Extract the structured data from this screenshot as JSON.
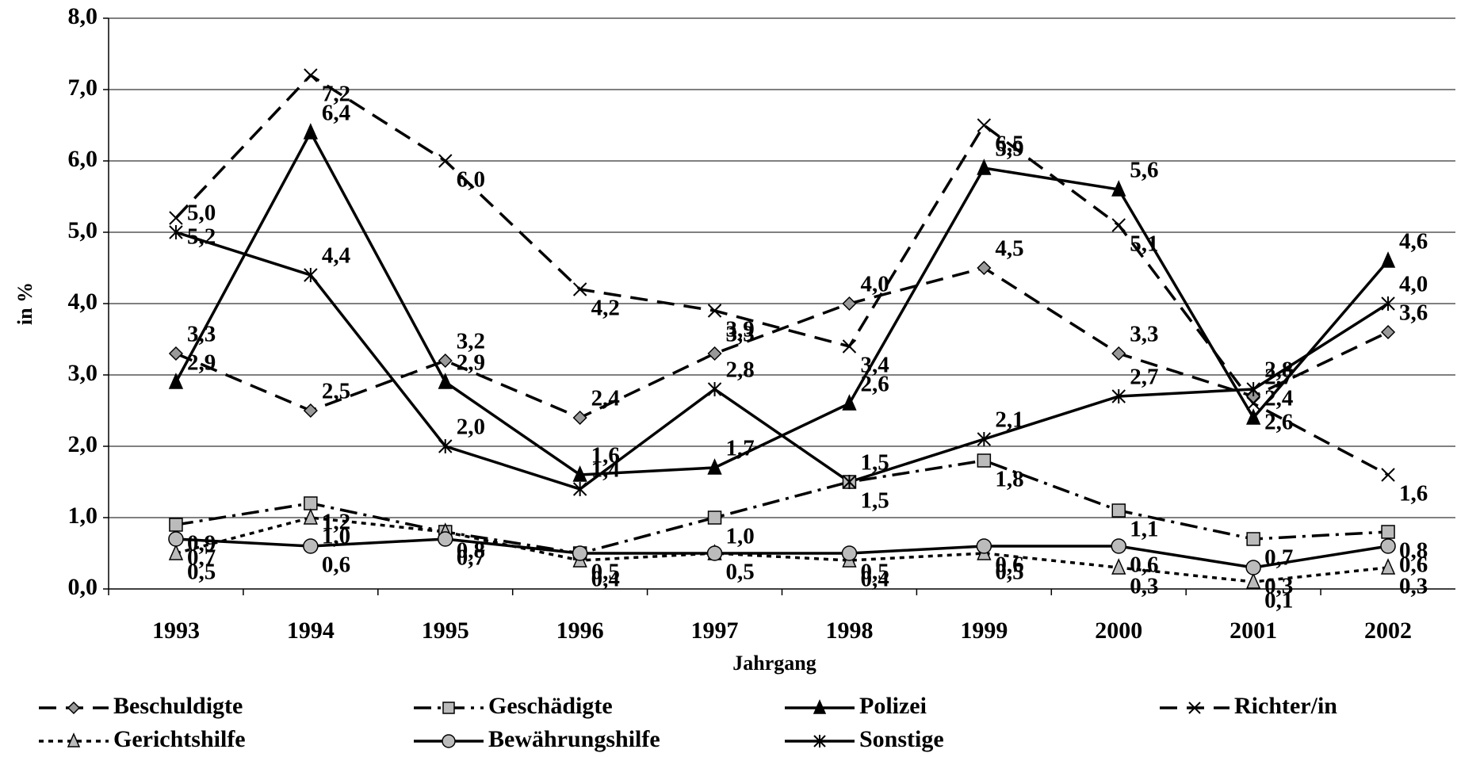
{
  "chart_data": {
    "type": "line",
    "x_label": "Jahrgang",
    "y_label": "in %",
    "categories": [
      "1993",
      "1994",
      "1995",
      "1996",
      "1997",
      "1998",
      "1999",
      "2000",
      "2001",
      "2002"
    ],
    "ylim": [
      0,
      8
    ],
    "yticks": [
      {
        "value": 0,
        "label": "0,0"
      },
      {
        "value": 1,
        "label": "1,0"
      },
      {
        "value": 2,
        "label": "2,0"
      },
      {
        "value": 3,
        "label": "3,0"
      },
      {
        "value": 4,
        "label": "4,0"
      },
      {
        "value": 5,
        "label": "5,0"
      },
      {
        "value": 6,
        "label": "6,0"
      },
      {
        "value": 7,
        "label": "7,0"
      },
      {
        "value": 8,
        "label": "8,0"
      }
    ],
    "grid": true,
    "legend": "bottom",
    "series": [
      {
        "name": "Beschuldigte",
        "color": "#000000",
        "marker": "diamond",
        "marker_color": "#999999",
        "dash": "dash",
        "values": [
          3.3,
          2.5,
          3.2,
          2.4,
          3.3,
          4.0,
          4.5,
          3.3,
          2.7,
          3.6
        ],
        "value_labels": [
          "3,3",
          "2,5",
          "3,2",
          "2,4",
          "3,3",
          "4,0",
          "4,5",
          "3,3",
          "2,7",
          "3,6"
        ]
      },
      {
        "name": "Geschädigte",
        "color": "#000000",
        "marker": "square",
        "marker_color": "#bbbbbb",
        "dash": "dashdot",
        "values": [
          0.9,
          1.2,
          0.8,
          0.5,
          1.0,
          1.5,
          1.8,
          1.1,
          0.7,
          0.8
        ],
        "value_labels": [
          "0,9",
          "1,2",
          "0,8",
          null,
          "1,0",
          "1,5",
          "1,8",
          "1,1",
          "0,7",
          "0,8"
        ]
      },
      {
        "name": "Polizei",
        "color": "#000000",
        "marker": "triangle",
        "marker_color": "#000000",
        "dash": "solid",
        "values": [
          2.9,
          6.4,
          2.9,
          1.6,
          1.7,
          2.6,
          5.9,
          5.6,
          2.4,
          4.6
        ],
        "value_labels": [
          "2,9",
          "6,4",
          "2,9",
          "1,6",
          "1,7",
          "2,6",
          "5,9",
          "5,6",
          "2,4",
          "4,6"
        ]
      },
      {
        "name": "Richter/in",
        "color": "#000000",
        "marker": "x",
        "marker_color": "#000000",
        "dash": "dash",
        "values": [
          5.2,
          7.2,
          6.0,
          4.2,
          3.9,
          3.4,
          6.5,
          5.1,
          2.6,
          1.6
        ],
        "value_labels": [
          "5,2",
          "7,2",
          "6,0",
          "4,2",
          "3,9",
          "3,4",
          "6,5",
          "5,1",
          "2,6",
          "1,6"
        ]
      },
      {
        "name": "Gerichtshilfe",
        "color": "#000000",
        "marker": "triangle",
        "marker_color": "#bbbbbb",
        "dash": "dot",
        "values": [
          0.5,
          1.0,
          0.8,
          0.4,
          0.5,
          0.4,
          0.5,
          0.3,
          0.1,
          0.3
        ],
        "value_labels": [
          "0,5",
          "1,0",
          null,
          "0,4",
          null,
          "0,4",
          "0,5",
          "0,3",
          "0,1",
          "0,3"
        ]
      },
      {
        "name": "Bewährungshilfe",
        "color": "#000000",
        "marker": "circle",
        "marker_color": "#bbbbbb",
        "dash": "solid",
        "values": [
          0.7,
          0.6,
          0.7,
          0.5,
          0.5,
          0.5,
          0.6,
          0.6,
          0.3,
          0.6
        ],
        "value_labels": [
          "0,7",
          "0,6",
          "0,7",
          "0,5",
          "0,5",
          "0,5",
          "0,6",
          "0,6",
          "0,3",
          "0,6"
        ]
      },
      {
        "name": "Sonstige",
        "color": "#000000",
        "marker": "asterisk",
        "marker_color": "#000000",
        "dash": "solid",
        "values": [
          5.0,
          4.4,
          2.0,
          1.4,
          2.8,
          1.5,
          2.1,
          2.7,
          2.8,
          4.0
        ],
        "value_labels": [
          "5,0",
          "4,4",
          "2,0",
          "1,4",
          "2,8",
          "1,5",
          "2,1",
          "2,7",
          "2,8",
          "4,0"
        ]
      }
    ]
  }
}
